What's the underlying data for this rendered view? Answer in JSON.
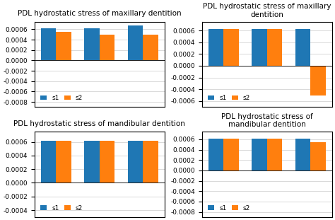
{
  "chart_data": [
    {
      "type": "bar",
      "title": "PDL hydrostatic stress of maxillary dentition",
      "categories": [
        null,
        null,
        null
      ],
      "series": [
        {
          "name": "s1",
          "values": [
            0.00062,
            0.00062,
            0.00068
          ]
        },
        {
          "name": "s2",
          "values": [
            0.00055,
            0.0005,
            0.0005
          ]
        }
      ],
      "ylim": [
        -0.0009,
        0.00075
      ],
      "yticks": [
        0.0006,
        0.0004,
        0.0002,
        {
          "value": 0.0,
          "label": "0.0000"
        },
        -0.0002,
        -0.0004,
        -0.0006,
        -0.0008
      ],
      "grid": true,
      "legend": "lower left",
      "tick_labels": "y"
    },
    {
      "type": "bar",
      "title": "PDL hydrostatic stress of maxillary dentition",
      "categories": [
        null,
        null,
        null
      ],
      "series": [
        {
          "name": "s1",
          "values": [
            0.00062,
            0.00062,
            0.00062
          ]
        },
        {
          "name": "s2",
          "values": [
            0.00062,
            0.00062,
            -0.0005
          ]
        }
      ],
      "ylim": [
        -0.0007,
        0.00075
      ],
      "yticks": [
        0.0006,
        0.0004,
        0.0002,
        {
          "value": 0.0,
          "label": "0.0000"
        },
        -0.0002,
        -0.0004,
        -0.0006
      ],
      "grid": true,
      "legend": "lower left",
      "tick_labels": "y"
    },
    {
      "type": "bar",
      "title": "PDL hydrostatic stress of mandibular dentition",
      "categories": [
        null,
        null,
        null
      ],
      "series": [
        {
          "name": "s1",
          "values": [
            0.00062,
            0.00062,
            0.00062
          ]
        },
        {
          "name": "s2",
          "values": [
            0.00062,
            0.00062,
            0.00062
          ]
        }
      ],
      "ylim": [
        -0.0005,
        0.00075
      ],
      "yticks": [
        0.0006,
        0.0004,
        0.0002,
        {
          "value": 0.0,
          "label": "0.0000"
        },
        -0.0002,
        -0.0004
      ],
      "grid": true,
      "legend": "lower left",
      "tick_labels": "y"
    },
    {
      "type": "bar",
      "title": "PDL hydrostatic stress of mandibular dentition",
      "categories": [
        null,
        null,
        null
      ],
      "series": [
        {
          "name": "s1",
          "values": [
            0.00062,
            0.00062,
            0.00062
          ]
        },
        {
          "name": "s2",
          "values": [
            0.00062,
            0.00062,
            0.00055
          ]
        }
      ],
      "ylim": [
        -0.0009,
        0.00075
      ],
      "yticks": [
        0.0006,
        0.0004,
        0.0002,
        {
          "value": 0.0,
          "label": "0.0000"
        },
        -0.0002,
        -0.0004,
        -0.0006,
        -0.0008
      ],
      "grid": true,
      "legend": "lower left",
      "tick_labels": "y"
    }
  ]
}
